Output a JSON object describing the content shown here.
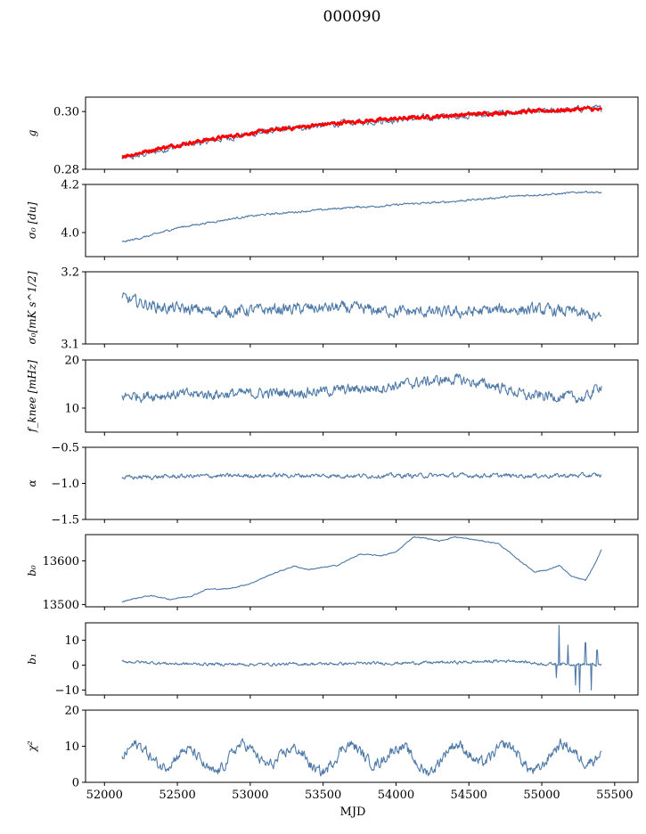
{
  "figure": {
    "suptitle": "000090"
  },
  "chart_data": [
    {
      "type": "line",
      "id": "g",
      "ylabel": "g",
      "ylim": [
        0.28,
        0.305
      ],
      "yticks": [
        0.28,
        0.3
      ],
      "yticklabels": [
        "0.28",
        "0.30"
      ],
      "xlim": [
        51870,
        55660
      ],
      "series": [
        {
          "color": "#4e79a7",
          "knots": [
            [
              52120,
              0.2838
            ],
            [
              52200,
              0.2843
            ],
            [
              52400,
              0.2868
            ],
            [
              52600,
              0.2888
            ],
            [
              52800,
              0.2905
            ],
            [
              53000,
              0.2922
            ],
            [
              53200,
              0.2936
            ],
            [
              53400,
              0.2948
            ],
            [
              53600,
              0.2958
            ],
            [
              53800,
              0.2965
            ],
            [
              54000,
              0.2972
            ],
            [
              54200,
              0.2978
            ],
            [
              54400,
              0.2984
            ],
            [
              54600,
              0.299
            ],
            [
              54800,
              0.2996
            ],
            [
              55000,
              0.3
            ],
            [
              55200,
              0.3005
            ],
            [
              55300,
              0.3012
            ],
            [
              55410,
              0.3008
            ]
          ],
          "noise": 0.0011
        },
        {
          "color": "#ff0000",
          "knots": [
            [
              52120,
              0.2845
            ],
            [
              52200,
              0.2852
            ],
            [
              52400,
              0.2875
            ],
            [
              52600,
              0.2893
            ],
            [
              52800,
              0.291
            ],
            [
              53000,
              0.2925
            ],
            [
              53200,
              0.2938
            ],
            [
              53400,
              0.295
            ],
            [
              53600,
              0.296
            ],
            [
              53800,
              0.2968
            ],
            [
              54000,
              0.2975
            ],
            [
              54200,
              0.2981
            ],
            [
              54400,
              0.2987
            ],
            [
              54600,
              0.2993
            ],
            [
              54800,
              0.2998
            ],
            [
              55000,
              0.3002
            ],
            [
              55200,
              0.3006
            ],
            [
              55300,
              0.3011
            ],
            [
              55410,
              0.3005
            ]
          ],
          "noise": 0.0006,
          "thick": true
        }
      ]
    },
    {
      "type": "line",
      "id": "sigma0_du",
      "ylabel": "σ₀ [du]",
      "ylim": [
        3.9,
        4.2
      ],
      "yticks": [
        4.0,
        4.2
      ],
      "yticklabels": [
        "4.0",
        "4.2"
      ],
      "xlim": [
        51870,
        55660
      ],
      "series": [
        {
          "color": "#4e79a7",
          "knots": [
            [
              52120,
              3.96
            ],
            [
              52300,
              3.985
            ],
            [
              52500,
              4.02
            ],
            [
              52700,
              4.04
            ],
            [
              52900,
              4.06
            ],
            [
              53100,
              4.075
            ],
            [
              53300,
              4.085
            ],
            [
              53500,
              4.095
            ],
            [
              53700,
              4.105
            ],
            [
              53900,
              4.11
            ],
            [
              54100,
              4.12
            ],
            [
              54300,
              4.125
            ],
            [
              54500,
              4.135
            ],
            [
              54700,
              4.145
            ],
            [
              54900,
              4.155
            ],
            [
              55100,
              4.16
            ],
            [
              55300,
              4.17
            ],
            [
              55410,
              4.165
            ]
          ],
          "noise": 0.004
        }
      ]
    },
    {
      "type": "line",
      "id": "sigma0_mk",
      "ylabel": "σ₀[mK s^1/2]",
      "ylim": [
        3.1,
        3.2
      ],
      "yticks": [
        3.1,
        3.2
      ],
      "yticklabels": [
        "3.1",
        "3.2"
      ],
      "xlim": [
        51870,
        55660
      ],
      "series": [
        {
          "color": "#4e79a7",
          "knots": [
            [
              52120,
              3.163
            ],
            [
              52400,
              3.15
            ],
            [
              52800,
              3.145
            ],
            [
              53200,
              3.148
            ],
            [
              53600,
              3.15
            ],
            [
              54000,
              3.145
            ],
            [
              54400,
              3.143
            ],
            [
              54800,
              3.148
            ],
            [
              55200,
              3.145
            ],
            [
              55410,
              3.135
            ]
          ],
          "noise": 0.008
        }
      ]
    },
    {
      "type": "line",
      "id": "fknee",
      "ylabel": "f_knee [mHz]",
      "ylim": [
        5,
        20
      ],
      "yticks": [
        10,
        20
      ],
      "yticklabels": [
        "10",
        "20"
      ],
      "xlim": [
        51870,
        55660
      ],
      "series": [
        {
          "color": "#4e79a7",
          "knots": [
            [
              52120,
              12.5
            ],
            [
              52500,
              12.8
            ],
            [
              53000,
              13.0
            ],
            [
              53500,
              13.5
            ],
            [
              53900,
              14.3
            ],
            [
              54200,
              15.5
            ],
            [
              54400,
              16.0
            ],
            [
              54700,
              14.5
            ],
            [
              54900,
              12.5
            ],
            [
              55100,
              12.5
            ],
            [
              55300,
              12.0
            ],
            [
              55410,
              15.0
            ]
          ],
          "noise": 1.1
        }
      ]
    },
    {
      "type": "line",
      "id": "alpha",
      "ylabel": "α",
      "ylim": [
        -1.5,
        -0.5
      ],
      "yticks": [
        -1.5,
        -1.0,
        -0.5
      ],
      "yticklabels": [
        "−1.5",
        "−1.0",
        "−0.5"
      ],
      "xlim": [
        51870,
        55660
      ],
      "series": [
        {
          "color": "#4e79a7",
          "knots": [
            [
              52120,
              -0.92
            ],
            [
              52600,
              -0.9
            ],
            [
              53200,
              -0.89
            ],
            [
              53800,
              -0.895
            ],
            [
              54400,
              -0.89
            ],
            [
              55000,
              -0.895
            ],
            [
              55410,
              -0.89
            ]
          ],
          "noise": 0.03
        }
      ]
    },
    {
      "type": "line",
      "id": "b0",
      "ylabel": "b₀",
      "ylim": [
        13495,
        13660
      ],
      "yticks": [
        13500,
        13600
      ],
      "yticklabels": [
        "13500",
        "13600"
      ],
      "xlim": [
        51870,
        55660
      ],
      "series": [
        {
          "color": "#4e79a7",
          "knots": [
            [
              52120,
              13506
            ],
            [
              52180,
              13512
            ],
            [
              52300,
              13520
            ],
            [
              52350,
              13519
            ],
            [
              52450,
              13512
            ],
            [
              52600,
              13520
            ],
            [
              52700,
              13535
            ],
            [
              52850,
              13536
            ],
            [
              53000,
              13548
            ],
            [
              53150,
              13570
            ],
            [
              53300,
              13588
            ],
            [
              53400,
              13580
            ],
            [
              53600,
              13590
            ],
            [
              53750,
              13615
            ],
            [
              53900,
              13612
            ],
            [
              54000,
              13620
            ],
            [
              54120,
              13655
            ],
            [
              54200,
              13652
            ],
            [
              54300,
              13645
            ],
            [
              54400,
              13655
            ],
            [
              54500,
              13650
            ],
            [
              54700,
              13640
            ],
            [
              54850,
              13600
            ],
            [
              54950,
              13575
            ],
            [
              55050,
              13580
            ],
            [
              55120,
              13590
            ],
            [
              55200,
              13565
            ],
            [
              55300,
              13555
            ],
            [
              55360,
              13590
            ],
            [
              55410,
              13625
            ]
          ],
          "noise": 1.2
        }
      ]
    },
    {
      "type": "line",
      "id": "b1",
      "ylabel": "b₁",
      "ylim": [
        -12,
        17
      ],
      "yticks": [
        -10,
        0,
        10
      ],
      "yticklabels": [
        "−10",
        "0",
        "10"
      ],
      "xlim": [
        51870,
        55660
      ],
      "series": [
        {
          "color": "#4e79a7",
          "knots": [
            [
              52120,
              1.5
            ],
            [
              52500,
              0.5
            ],
            [
              53000,
              0.3
            ],
            [
              53500,
              0.5
            ],
            [
              54000,
              0.8
            ],
            [
              54500,
              1.2
            ],
            [
              54800,
              1.8
            ],
            [
              55000,
              0.5
            ],
            [
              55200,
              0.5
            ],
            [
              55410,
              0.0
            ]
          ],
          "noise": 0.6,
          "spikes": [
            [
              55120,
              16
            ],
            [
              55100,
              -5
            ],
            [
              55180,
              8
            ],
            [
              55260,
              -11
            ],
            [
              55300,
              9
            ],
            [
              55340,
              -10
            ],
            [
              55380,
              6
            ],
            [
              55230,
              -8
            ]
          ]
        }
      ]
    },
    {
      "type": "line",
      "id": "chi2",
      "ylabel": "χ²",
      "ylim": [
        0,
        20
      ],
      "yticks": [
        0,
        10,
        20
      ],
      "yticklabels": [
        "0",
        "10",
        "20"
      ],
      "xlim": [
        51870,
        55660
      ],
      "xticks": [
        52000,
        52500,
        53000,
        53500,
        54000,
        54500,
        55000,
        55500
      ],
      "xticklabels": [
        "52000",
        "52500",
        "53000",
        "53500",
        "54000",
        "54500",
        "55000",
        "55500"
      ],
      "xlabel": "MJD",
      "series": [
        {
          "color": "#4e79a7",
          "knots": [
            [
              52120,
              6.5
            ],
            [
              55410,
              7.5
            ]
          ],
          "noise": 1.5,
          "periodic": 3.0
        }
      ]
    }
  ]
}
